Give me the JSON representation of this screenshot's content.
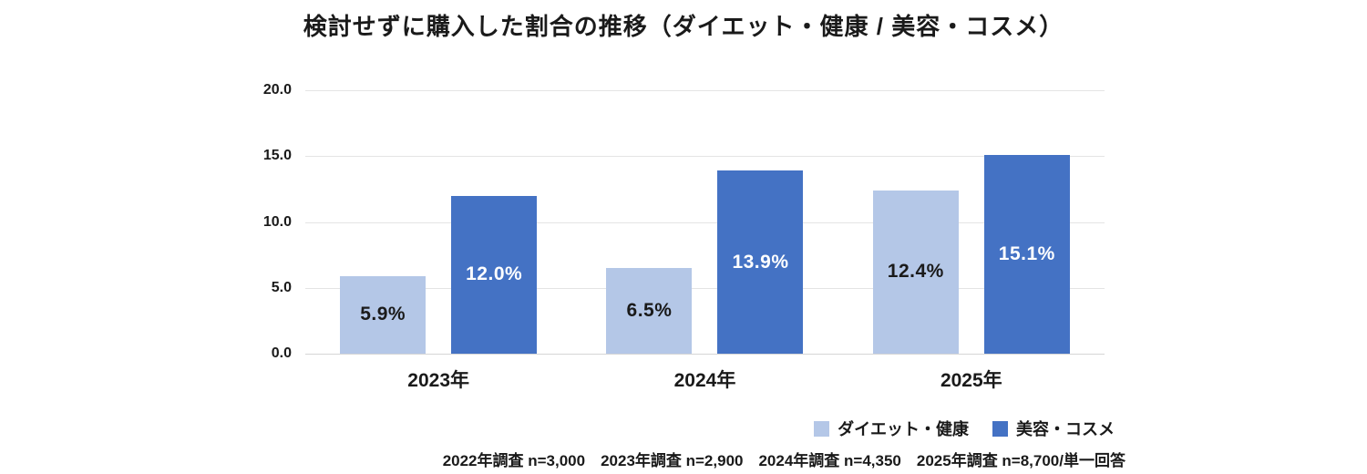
{
  "title": "検討せずに購入した割合の推移（ダイエット・健康 / 美容・コスメ）",
  "footnote": "2022年調査 n=3,000　2023年調査 n=2,900　2024年調査 n=4,350　2025年調査 n=8,700/単一回答",
  "colors": {
    "series1": "#b4c7e7",
    "series2": "#4472c4",
    "gridline": "#e4e4e4",
    "text": "#1a1a1a"
  },
  "chart_data": {
    "type": "bar",
    "categories": [
      "2023年",
      "2024年",
      "2025年"
    ],
    "series": [
      {
        "name": "ダイエット・健康",
        "slug": "diet-health",
        "color": "#b4c7e7",
        "label_color": "#1a1a1a",
        "values": [
          5.9,
          6.5,
          12.4
        ],
        "labels": [
          "5.9%",
          "6.5%",
          "12.4%"
        ]
      },
      {
        "name": "美容・コスメ",
        "slug": "beauty-cosmetics",
        "color": "#4472c4",
        "label_color": "#ffffff",
        "values": [
          12.0,
          13.9,
          15.1
        ],
        "labels": [
          "12.0%",
          "13.9%",
          "15.1%"
        ]
      }
    ],
    "ylim": [
      0,
      20
    ],
    "yticks": [
      "20.0",
      "15.0",
      "10.0",
      "5.0",
      "0.0"
    ],
    "grid": true,
    "legend_position": "bottom-right",
    "xlabel": "",
    "ylabel": ""
  }
}
